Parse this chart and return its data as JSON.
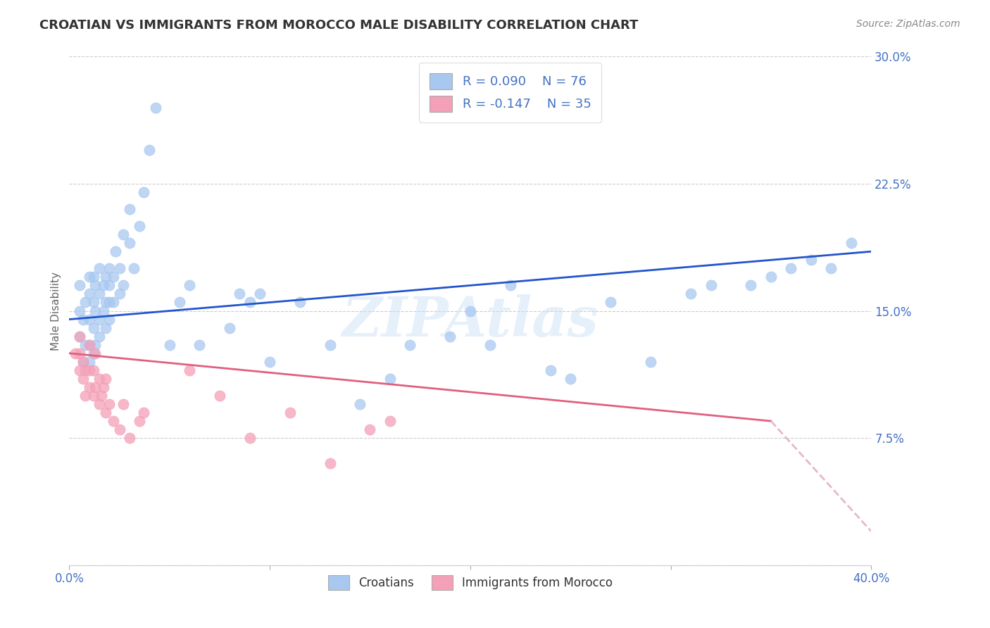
{
  "title": "CROATIAN VS IMMIGRANTS FROM MOROCCO MALE DISABILITY CORRELATION CHART",
  "source_text": "Source: ZipAtlas.com",
  "ylabel": "Male Disability",
  "xlim": [
    0.0,
    0.4
  ],
  "ylim": [
    0.0,
    0.3
  ],
  "xtick_vals": [
    0.0,
    0.1,
    0.2,
    0.3,
    0.4
  ],
  "xticklabels": [
    "0.0%",
    "",
    "",
    "",
    "40.0%"
  ],
  "ytick_vals": [
    0.0,
    0.075,
    0.15,
    0.225,
    0.3
  ],
  "yticklabels": [
    "",
    "7.5%",
    "15.0%",
    "22.5%",
    "30.0%"
  ],
  "croatian_color": "#a8c8f0",
  "moroccan_color": "#f4a0b8",
  "trend_croatian_color": "#2255cc",
  "trend_moroccan_solid_color": "#e06080",
  "trend_moroccan_dash_color": "#e8b8c8",
  "r_croatian": 0.09,
  "n_croatian": 76,
  "r_moroccan": -0.147,
  "n_moroccan": 35,
  "legend_label_croatian": "Croatians",
  "legend_label_moroccan": "Immigrants from Morocco",
  "watermark": "ZIPAtlas",
  "grid_color": "#cccccc",
  "background_color": "#ffffff",
  "tick_color": "#4472c4",
  "title_color": "#333333",
  "source_color": "#888888",
  "ylabel_color": "#666666",
  "croatian_x": [
    0.005,
    0.005,
    0.005,
    0.007,
    0.007,
    0.008,
    0.008,
    0.01,
    0.01,
    0.01,
    0.01,
    0.01,
    0.012,
    0.012,
    0.012,
    0.012,
    0.013,
    0.013,
    0.013,
    0.015,
    0.015,
    0.015,
    0.015,
    0.017,
    0.017,
    0.018,
    0.018,
    0.018,
    0.02,
    0.02,
    0.02,
    0.02,
    0.022,
    0.022,
    0.023,
    0.025,
    0.025,
    0.027,
    0.027,
    0.03,
    0.03,
    0.032,
    0.035,
    0.037,
    0.04,
    0.043,
    0.05,
    0.055,
    0.06,
    0.065,
    0.08,
    0.085,
    0.09,
    0.095,
    0.1,
    0.115,
    0.13,
    0.145,
    0.16,
    0.17,
    0.19,
    0.2,
    0.21,
    0.22,
    0.24,
    0.25,
    0.27,
    0.29,
    0.31,
    0.32,
    0.34,
    0.35,
    0.36,
    0.37,
    0.38,
    0.39
  ],
  "croatian_y": [
    0.135,
    0.15,
    0.165,
    0.12,
    0.145,
    0.13,
    0.155,
    0.12,
    0.13,
    0.145,
    0.16,
    0.17,
    0.125,
    0.14,
    0.155,
    0.17,
    0.13,
    0.15,
    0.165,
    0.135,
    0.145,
    0.16,
    0.175,
    0.15,
    0.165,
    0.14,
    0.155,
    0.17,
    0.145,
    0.155,
    0.165,
    0.175,
    0.155,
    0.17,
    0.185,
    0.16,
    0.175,
    0.165,
    0.195,
    0.19,
    0.21,
    0.175,
    0.2,
    0.22,
    0.245,
    0.27,
    0.13,
    0.155,
    0.165,
    0.13,
    0.14,
    0.16,
    0.155,
    0.16,
    0.12,
    0.155,
    0.13,
    0.095,
    0.11,
    0.13,
    0.135,
    0.15,
    0.13,
    0.165,
    0.115,
    0.11,
    0.155,
    0.12,
    0.16,
    0.165,
    0.165,
    0.17,
    0.175,
    0.18,
    0.175,
    0.19
  ],
  "moroccan_x": [
    0.003,
    0.005,
    0.005,
    0.005,
    0.007,
    0.007,
    0.008,
    0.008,
    0.01,
    0.01,
    0.01,
    0.012,
    0.012,
    0.013,
    0.013,
    0.015,
    0.015,
    0.016,
    0.017,
    0.018,
    0.018,
    0.02,
    0.022,
    0.025,
    0.027,
    0.03,
    0.035,
    0.037,
    0.06,
    0.075,
    0.09,
    0.11,
    0.13,
    0.15,
    0.16
  ],
  "moroccan_y": [
    0.125,
    0.115,
    0.125,
    0.135,
    0.11,
    0.12,
    0.1,
    0.115,
    0.105,
    0.115,
    0.13,
    0.1,
    0.115,
    0.105,
    0.125,
    0.095,
    0.11,
    0.1,
    0.105,
    0.09,
    0.11,
    0.095,
    0.085,
    0.08,
    0.095,
    0.075,
    0.085,
    0.09,
    0.115,
    0.1,
    0.075,
    0.09,
    0.06,
    0.08,
    0.085
  ],
  "trend_c_x0": 0.0,
  "trend_c_x1": 0.4,
  "trend_c_y0": 0.145,
  "trend_c_y1": 0.185,
  "trend_m_solid_x0": 0.0,
  "trend_m_solid_x1": 0.35,
  "trend_m_solid_y0": 0.125,
  "trend_m_solid_y1": 0.085,
  "trend_m_dash_x0": 0.35,
  "trend_m_dash_x1": 0.4,
  "trend_m_dash_y0": 0.085,
  "trend_m_dash_y1": 0.02
}
